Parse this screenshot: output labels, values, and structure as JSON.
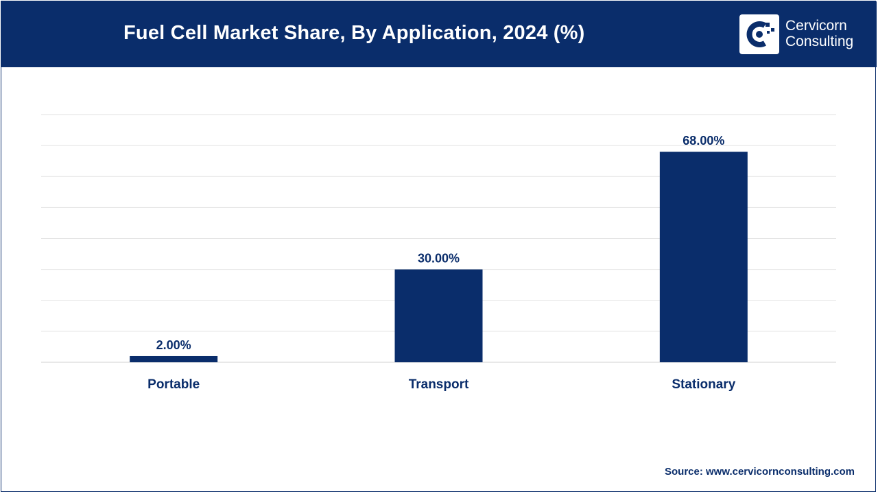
{
  "header": {
    "title": "Fuel Cell Market Share, By Application, 2024 (%)",
    "logo_line1": "Cervicorn",
    "logo_line2": "Consulting",
    "logo_icon": "cervicorn-logo-icon"
  },
  "colors": {
    "brand": "#0a2d6b",
    "bar": "#0a2d6b",
    "grid": "#e2e2e2"
  },
  "chart_data": {
    "type": "bar",
    "title": "Fuel Cell Market Share, By Application, 2024 (%)",
    "categories": [
      "Portable",
      "Transport",
      "Stationary"
    ],
    "values": [
      2,
      30,
      68
    ],
    "data_labels": [
      "2.00%",
      "30.00%",
      "68.00%"
    ],
    "xlabel": "",
    "ylabel": "",
    "ylim": [
      0,
      80
    ],
    "grid": true
  },
  "footer": {
    "source": "Source: www.cervicornconsulting.com"
  }
}
